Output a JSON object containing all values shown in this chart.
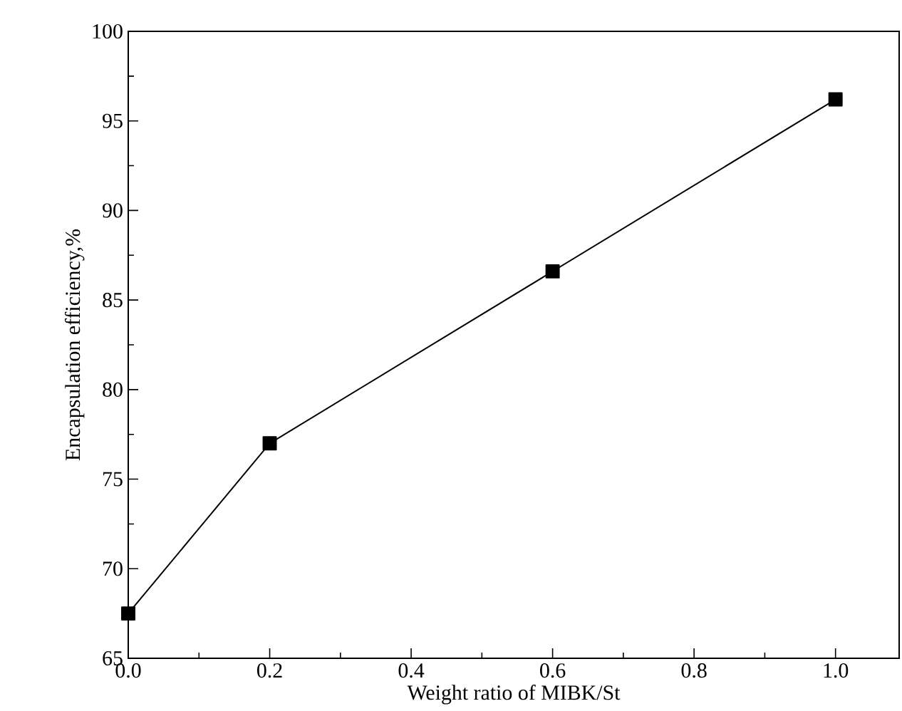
{
  "chart_data": {
    "type": "line",
    "xlabel": "Weight ratio of MIBK/St",
    "ylabel": "Encapsulation efficiency,%",
    "x": [
      0.0,
      0.2,
      0.6,
      1.0
    ],
    "series": [
      {
        "color": "#000000",
        "values": [
          67.5,
          77.0,
          86.6,
          96.2
        ]
      }
    ],
    "xlim": [
      0,
      1.09
    ],
    "xticks": [
      {
        "value": 0,
        "label": "0.0"
      },
      0.2,
      0.4,
      0.6,
      0.8,
      {
        "value": 1,
        "label": "1.0"
      }
    ],
    "ylim": [
      65,
      100
    ],
    "yticks": [
      65,
      70,
      75,
      80,
      85,
      90,
      95,
      100
    ],
    "marker": "square",
    "line_style": "solid"
  }
}
